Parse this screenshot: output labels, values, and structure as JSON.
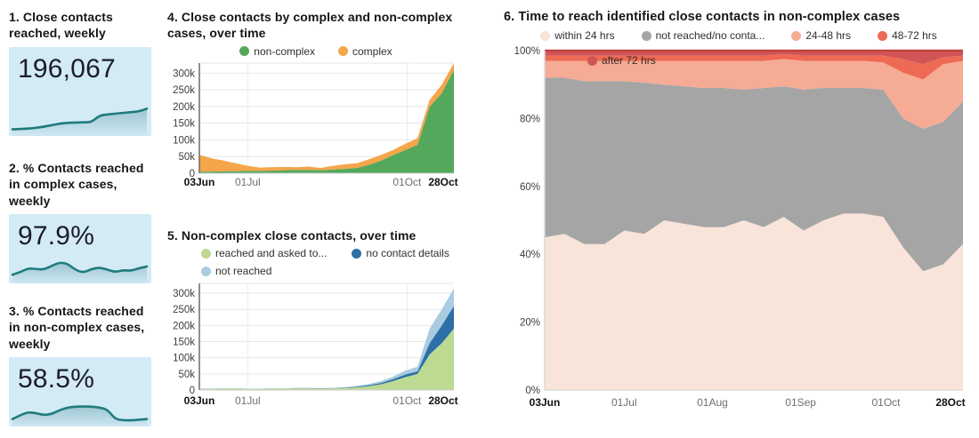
{
  "colors": {
    "spark": "#1f7b7e",
    "card_bg": "#d2ebf5"
  },
  "kpi_cards": [
    {
      "title": "1. Close contacts reached, weekly",
      "value": "196,067",
      "spark": [
        0.08,
        0.09,
        0.1,
        0.12,
        0.15,
        0.19,
        0.23,
        0.25,
        0.26,
        0.26,
        0.27,
        0.44,
        0.47,
        0.49,
        0.51,
        0.53,
        0.55,
        0.62
      ]
    },
    {
      "title": "2. % Contacts reached in complex cases, weekly",
      "value": "97.9%",
      "spark": [
        0.2,
        0.3,
        0.45,
        0.42,
        0.4,
        0.55,
        0.68,
        0.62,
        0.38,
        0.28,
        0.42,
        0.48,
        0.4,
        0.3,
        0.38,
        0.35,
        0.45,
        0.52
      ]
    },
    {
      "title": "3. % Contacts reached in non-complex cases, weekly",
      "value": "58.5%",
      "spark": [
        0.15,
        0.3,
        0.42,
        0.38,
        0.3,
        0.35,
        0.5,
        0.6,
        0.63,
        0.64,
        0.63,
        0.6,
        0.52,
        0.15,
        0.1,
        0.1,
        0.12,
        0.15
      ]
    }
  ],
  "chart_data": [
    {
      "type": "area",
      "stacked": true,
      "title": "4. Close contacts by complex and non-complex cases, over time",
      "legend_position": "top-center",
      "ylim": [
        0,
        330000
      ],
      "y_ticks": [
        {
          "v": 0,
          "label": "0"
        },
        {
          "v": 50000,
          "label": "50k"
        },
        {
          "v": 100000,
          "label": "100k"
        },
        {
          "v": 150000,
          "label": "150k"
        },
        {
          "v": 200000,
          "label": "200k"
        },
        {
          "v": 250000,
          "label": "250k"
        },
        {
          "v": 300000,
          "label": "300k"
        }
      ],
      "x_ticks": [
        {
          "label": "03Jun",
          "f": 0,
          "bold": true
        },
        {
          "label": "01Jul",
          "f": 0.19
        },
        {
          "label": "01Oct",
          "f": 0.816
        },
        {
          "label": "28Oct",
          "f": 1,
          "bold": true
        }
      ],
      "x_gridlines": [
        0.19,
        0.816
      ],
      "series": [
        {
          "name": "non-complex",
          "color": "#53a85c",
          "values": [
            5000,
            5000,
            6000,
            6000,
            7000,
            7000,
            8000,
            9000,
            10000,
            10000,
            9000,
            11000,
            13000,
            16000,
            25000,
            38000,
            55000,
            70000,
            85000,
            200000,
            240000,
            310000
          ]
        },
        {
          "name": "complex",
          "color": "#f5a54a",
          "values": [
            50000,
            40000,
            32000,
            24000,
            15000,
            10000,
            10000,
            10000,
            8000,
            10000,
            7000,
            11000,
            14000,
            14000,
            17000,
            17000,
            15000,
            18000,
            20000,
            20000,
            25000,
            20000
          ]
        }
      ]
    },
    {
      "type": "area",
      "stacked": true,
      "title": "5. Non-complex close contacts, over time",
      "legend_position": "top-left",
      "ylim": [
        0,
        330000
      ],
      "y_ticks": [
        {
          "v": 0,
          "label": "0"
        },
        {
          "v": 50000,
          "label": "50k"
        },
        {
          "v": 100000,
          "label": "100k"
        },
        {
          "v": 150000,
          "label": "150k"
        },
        {
          "v": 200000,
          "label": "200k"
        },
        {
          "v": 250000,
          "label": "250k"
        },
        {
          "v": 300000,
          "label": "300k"
        }
      ],
      "x_ticks": [
        {
          "label": "03Jun",
          "f": 0,
          "bold": true
        },
        {
          "label": "01Jul",
          "f": 0.19
        },
        {
          "label": "01Oct",
          "f": 0.816
        },
        {
          "label": "28Oct",
          "f": 1,
          "bold": true
        }
      ],
      "x_gridlines": [
        0.19,
        0.816
      ],
      "series": [
        {
          "name": "reached and asked to...",
          "color": "#bcda92",
          "values": [
            3000,
            3000,
            4000,
            4000,
            3000,
            3000,
            4000,
            4000,
            5000,
            5000,
            4000,
            5000,
            6000,
            8000,
            12000,
            18000,
            28000,
            40000,
            50000,
            110000,
            145000,
            190000
          ]
        },
        {
          "name": "no contact details",
          "color": "#2e6fa7",
          "values": [
            500,
            500,
            500,
            500,
            500,
            500,
            500,
            500,
            1000,
            1000,
            1000,
            1000,
            1000,
            2000,
            3000,
            4000,
            6000,
            8000,
            8000,
            35000,
            55000,
            70000
          ]
        },
        {
          "name": "not reached",
          "color": "#a9cce0",
          "values": [
            1000,
            1000,
            1000,
            1000,
            500,
            500,
            1000,
            1000,
            1000,
            1000,
            1000,
            1000,
            2000,
            3000,
            4000,
            6000,
            8000,
            12000,
            14000,
            45000,
            50000,
            55000
          ]
        }
      ]
    },
    {
      "type": "area",
      "stacked": true,
      "percent": true,
      "title": "6. Time to reach identified close contacts in non-complex cases",
      "legend_position": "top-center, overflow row overlaps plot",
      "ylim": [
        0,
        100
      ],
      "top_stroke": "#bf4340",
      "y_ticks": [
        {
          "v": 0,
          "label": "0%"
        },
        {
          "v": 20,
          "label": "20%"
        },
        {
          "v": 40,
          "label": "40%"
        },
        {
          "v": 60,
          "label": "60%"
        },
        {
          "v": 80,
          "label": "80%"
        },
        {
          "v": 100,
          "label": "100%"
        }
      ],
      "x_ticks": [
        {
          "label": "03Jun",
          "f": 0,
          "bold": true
        },
        {
          "label": "01Jul",
          "f": 0.19
        },
        {
          "label": "01Aug",
          "f": 0.401
        },
        {
          "label": "01Sep",
          "f": 0.612
        },
        {
          "label": "01Oct",
          "f": 0.816
        },
        {
          "label": "28Oct",
          "f": 1,
          "bold": true
        }
      ],
      "x_gridlines": [
        0.19,
        0.401,
        0.612,
        0.816
      ],
      "series": [
        {
          "name": "within 24 hrs",
          "color": "#f9e4da",
          "values": [
            45,
            46,
            43,
            43,
            47,
            46,
            50,
            49,
            48,
            48,
            50,
            48,
            51,
            47,
            50,
            52,
            52,
            51,
            42,
            35,
            37,
            43
          ]
        },
        {
          "name": "not reached/no conta...",
          "color": "#a5a5a5",
          "values": [
            47,
            46,
            48,
            48,
            44,
            44.5,
            40,
            40.5,
            41,
            41,
            38.5,
            41,
            38.5,
            41.5,
            39,
            37,
            37,
            37.5,
            38,
            42,
            42,
            42
          ]
        },
        {
          "name": "24-48 hrs",
          "color": "#f5ab94",
          "values": [
            5,
            5,
            6,
            6,
            6,
            6.5,
            7,
            7.5,
            8,
            8,
            8.5,
            8,
            8,
            8.5,
            8,
            8,
            8,
            8,
            13.5,
            14.5,
            17,
            12
          ]
        },
        {
          "name": "48-72 hrs",
          "color": "#ee6a55",
          "values": [
            1.5,
            1.5,
            1.5,
            1.5,
            1.5,
            1.5,
            1.5,
            1.5,
            1.5,
            1.5,
            1.5,
            1.5,
            1.5,
            1.5,
            1.5,
            1.5,
            1.5,
            2,
            4,
            4.5,
            2,
            1.5
          ]
        },
        {
          "name": "after 72 hrs",
          "color": "#d25555",
          "values": [
            1.5,
            1.5,
            1.5,
            1.5,
            1.5,
            1.5,
            1.5,
            1.5,
            1.5,
            1.5,
            1.5,
            1.5,
            1,
            1.5,
            1.5,
            1.5,
            1.5,
            1.5,
            2.5,
            4,
            2,
            1.5
          ]
        }
      ]
    }
  ]
}
